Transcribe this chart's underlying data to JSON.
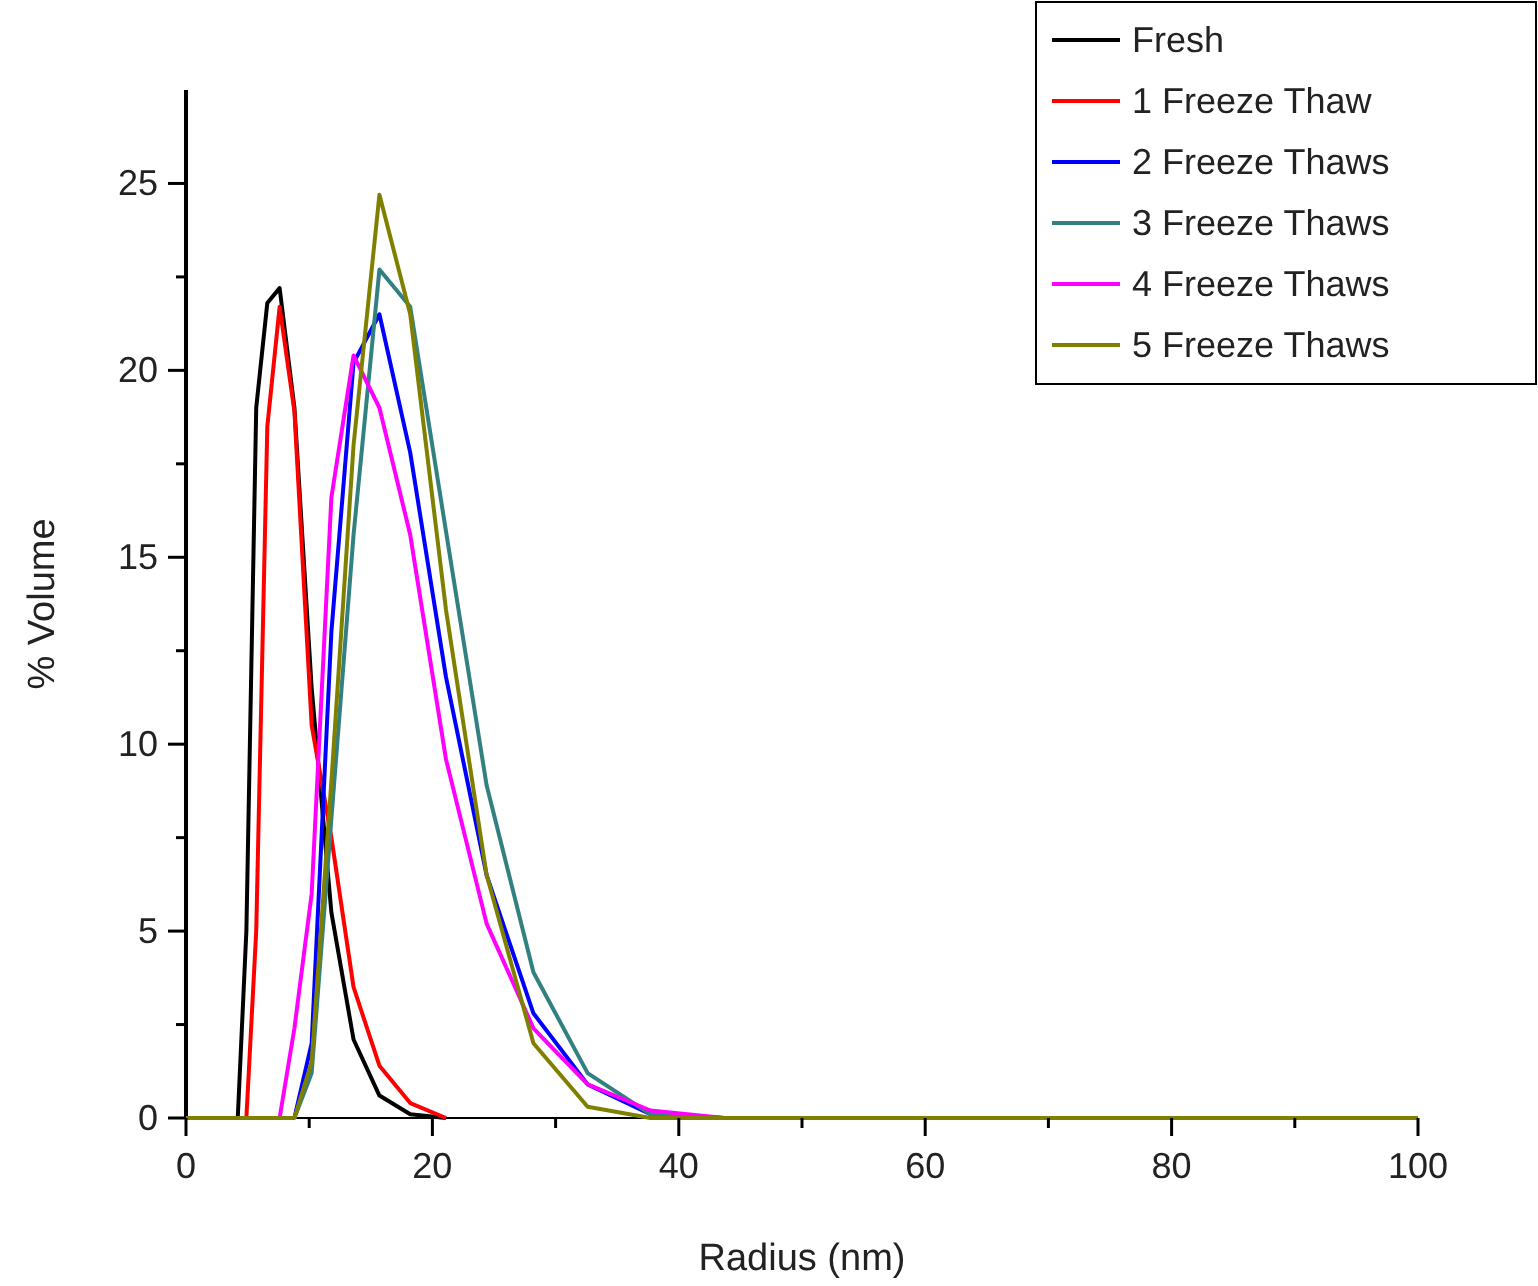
{
  "chart_data": {
    "type": "line",
    "xlabel": "Radius (nm)",
    "ylabel": "% Volume",
    "x": [
      0,
      4.2,
      4.9,
      5.7,
      6.6,
      7.6,
      8.8,
      10.2,
      11.8,
      13.6,
      15.7,
      18.2,
      21.1,
      24.4,
      28.2,
      32.6,
      37.7,
      43.7,
      50.5,
      58.5,
      67.7,
      78.3,
      90.6,
      100
    ],
    "series": [
      {
        "name": "Fresh",
        "color": "#000000",
        "values": [
          null,
          0,
          5,
          19,
          21.8,
          22.2,
          19,
          11.5,
          5.5,
          2.1,
          0.6,
          0.1,
          0,
          null,
          null,
          null,
          null,
          null,
          null,
          null,
          null,
          null,
          null,
          null
        ]
      },
      {
        "name": "1 Freeze Thaw",
        "color": "#ff0000",
        "values": [
          null,
          null,
          0,
          5,
          18.5,
          21.7,
          18.9,
          10.5,
          7.5,
          3.5,
          1.4,
          0.4,
          0,
          null,
          null,
          null,
          null,
          null,
          null,
          null,
          null,
          null,
          null,
          null
        ]
      },
      {
        "name": "2 Freeze Thaws",
        "color": "#0000ff",
        "values": [
          null,
          null,
          null,
          null,
          null,
          null,
          0,
          2,
          13,
          20.2,
          21.5,
          17.8,
          11.8,
          6.5,
          2.8,
          0.9,
          0.1,
          0,
          null,
          null,
          null,
          null,
          null,
          null
        ]
      },
      {
        "name": "3 Freeze Thaws",
        "color": "#338080",
        "values": [
          null,
          null,
          null,
          null,
          null,
          null,
          0,
          1.2,
          8,
          15.6,
          22.7,
          21.7,
          15.7,
          8.9,
          3.9,
          1.2,
          0.1,
          0,
          null,
          null,
          null,
          null,
          null,
          null
        ]
      },
      {
        "name": "4 Freeze Thaws",
        "color": "#ff00ff",
        "values": [
          null,
          null,
          null,
          null,
          null,
          0,
          2.4,
          6,
          16.6,
          20.4,
          19,
          15.6,
          9.6,
          5.2,
          2.4,
          0.9,
          0.2,
          0,
          null,
          null,
          null,
          null,
          null,
          null
        ]
      },
      {
        "name": "5 Freeze Thaws",
        "color": "#808000",
        "values": [
          0,
          0,
          0,
          0,
          0,
          0,
          0,
          1.5,
          9,
          18,
          24.7,
          21.5,
          13.6,
          6.5,
          2,
          0.3,
          0,
          0,
          0,
          0,
          0,
          0,
          0,
          0
        ]
      }
    ],
    "xlim": [
      0,
      100
    ],
    "xticks": [
      0,
      {
        "value": 10,
        "label": null
      },
      20,
      {
        "value": 30,
        "label": null
      },
      40,
      {
        "value": 50,
        "label": null
      },
      60,
      {
        "value": 70,
        "label": null
      },
      80,
      {
        "value": 90,
        "label": null
      },
      100
    ],
    "ylim": [
      0,
      27.5
    ],
    "yticks": [
      0,
      {
        "value": 2.5,
        "label": null
      },
      5,
      {
        "value": 7.5,
        "label": null
      },
      10,
      {
        "value": 12.5,
        "label": null
      },
      15,
      {
        "value": 17.5,
        "label": null
      },
      20,
      {
        "value": 22.5,
        "label": null
      },
      25
    ],
    "legend": "top right",
    "grid": false,
    "marker": "none",
    "line_style": "solid"
  }
}
